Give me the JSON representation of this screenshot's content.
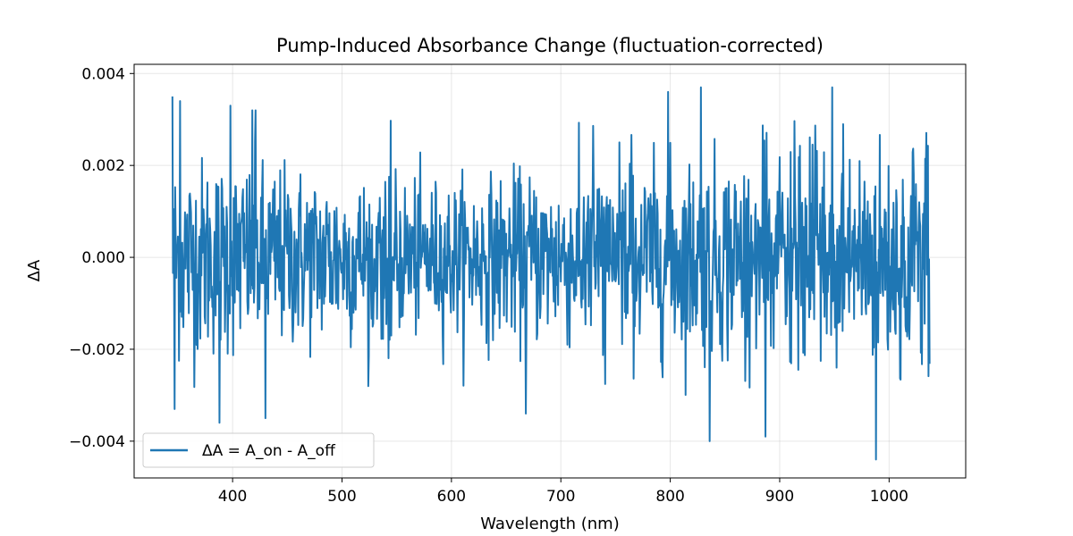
{
  "chart_data": {
    "type": "line",
    "title": "Pump-Induced Absorbance Change (fluctuation-corrected)",
    "xlabel": "Wavelength (nm)",
    "ylabel": "ΔA",
    "xlim": [
      310,
      1070
    ],
    "ylim": [
      -0.0048,
      0.0042
    ],
    "xticks": [
      400,
      500,
      600,
      700,
      800,
      900,
      1000
    ],
    "xtick_labels": [
      "400",
      "500",
      "600",
      "700",
      "800",
      "900",
      "1000"
    ],
    "yticks": [
      -0.004,
      -0.002,
      0.0,
      0.002,
      0.004
    ],
    "ytick_labels": [
      "−0.004",
      "−0.002",
      "0.000",
      "0.002",
      "0.004"
    ],
    "grid": true,
    "legend_position": "lower-left",
    "series": [
      {
        "name": "ΔA = A_on - A_off",
        "color": "#1f77b4",
        "x_range": [
          345,
          1037
        ],
        "x_step": 0.5,
        "noise_std_start": 0.0011,
        "noise_std_end": 0.0013,
        "noise_std_min": 0.0008,
        "noise_std_min_at": 590,
        "mean": 0.0,
        "notable_points": [
          {
            "x": 345,
            "y": 0.0035
          },
          {
            "x": 347,
            "y": -0.0033
          },
          {
            "x": 352,
            "y": 0.0034
          },
          {
            "x": 388,
            "y": -0.0036
          },
          {
            "x": 398,
            "y": 0.0033
          },
          {
            "x": 418,
            "y": 0.0032
          },
          {
            "x": 421,
            "y": 0.0032
          },
          {
            "x": 430,
            "y": -0.0035
          },
          {
            "x": 668,
            "y": -0.0034
          },
          {
            "x": 798,
            "y": 0.0036
          },
          {
            "x": 828,
            "y": 0.0037
          },
          {
            "x": 836,
            "y": -0.004
          },
          {
            "x": 887,
            "y": -0.0039
          },
          {
            "x": 948,
            "y": 0.0037
          },
          {
            "x": 988,
            "y": -0.0044
          }
        ]
      }
    ]
  }
}
